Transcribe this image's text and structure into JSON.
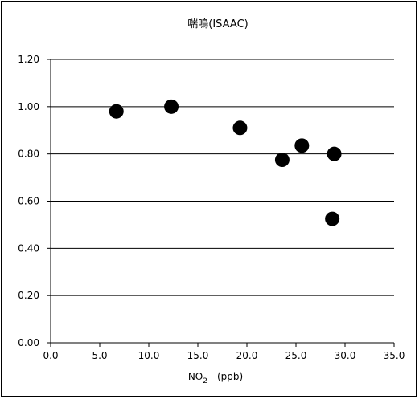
{
  "chart_data": {
    "type": "scatter",
    "title": "喘鳴(ISAAC)",
    "xlabel_main": "NO",
    "xlabel_sub": "2",
    "xlabel_unit": "(ppb)",
    "ylabel": "",
    "xlim": [
      0,
      35
    ],
    "ylim": [
      0,
      1.2
    ],
    "x_ticks": [
      "0.0",
      "5.0",
      "10.0",
      "15.0",
      "20.0",
      "25.0",
      "30.0",
      "35.0"
    ],
    "y_ticks": [
      "0.00",
      "0.20",
      "0.40",
      "0.60",
      "0.80",
      "1.00",
      "1.20"
    ],
    "grid": "horizontal",
    "marker_color": "#000000",
    "points": [
      {
        "x": 6.7,
        "y": 0.98
      },
      {
        "x": 12.3,
        "y": 1.0
      },
      {
        "x": 19.3,
        "y": 0.91
      },
      {
        "x": 23.6,
        "y": 0.775
      },
      {
        "x": 25.6,
        "y": 0.835
      },
      {
        "x": 28.9,
        "y": 0.8
      },
      {
        "x": 28.7,
        "y": 0.525
      }
    ]
  }
}
